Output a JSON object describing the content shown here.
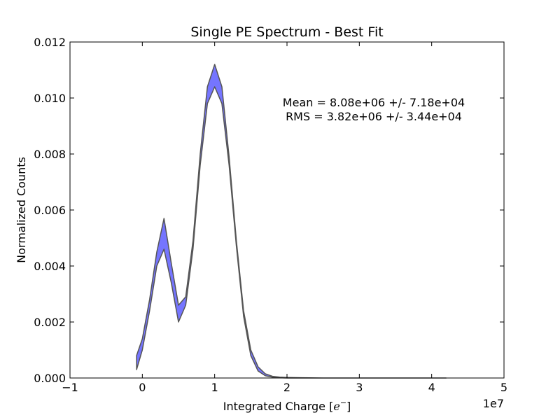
{
  "chart_data": {
    "type": "area",
    "title": "Single PE Spectrum - Best Fit",
    "xlabel": "Integrated Charge [",
    "xlabel_math": "e",
    "xlabel_sup": "−",
    "xlabel_end": "]",
    "ylabel": "Normalized Counts",
    "x_offset_label": "1e7",
    "xlim": [
      -1,
      5
    ],
    "ylim": [
      0,
      0.012
    ],
    "x_ticks": [
      -1,
      0,
      1,
      2,
      3,
      4,
      5
    ],
    "x_tick_labels": [
      "−1",
      "0",
      "1",
      "2",
      "3",
      "4",
      "5"
    ],
    "y_ticks": [
      0,
      0.002,
      0.004,
      0.006,
      0.008,
      0.01,
      0.012
    ],
    "y_tick_labels": [
      "0.000",
      "0.002",
      "0.004",
      "0.006",
      "0.008",
      "0.010",
      "0.012"
    ],
    "annotations": [
      "Mean = 8.08e+06 +/- 7.18e+04",
      "RMS = 3.82e+06 +/- 3.44e+04"
    ],
    "band": {
      "fill_color": "#7575ff",
      "edge_color": "#555555",
      "x": [
        -0.08,
        0.0,
        0.1,
        0.2,
        0.3,
        0.4,
        0.5,
        0.6,
        0.7,
        0.8,
        0.9,
        1.0,
        1.1,
        1.2,
        1.3,
        1.4,
        1.5,
        1.6,
        1.7,
        1.8,
        1.9,
        2.0,
        2.2,
        2.5,
        3.0,
        3.5,
        4.0,
        4.2
      ],
      "upper": [
        0.0008,
        0.0014,
        0.0028,
        0.0045,
        0.0057,
        0.0041,
        0.0026,
        0.0029,
        0.0049,
        0.008,
        0.0104,
        0.0112,
        0.0104,
        0.0079,
        0.0049,
        0.0024,
        0.001,
        0.0004,
        0.00015,
        6e-05,
        3e-05,
        2e-05,
        1e-05,
        0.0,
        0.0,
        0.0,
        0.0,
        0.0
      ],
      "lower": [
        0.0003,
        0.001,
        0.0024,
        0.004,
        0.0046,
        0.0034,
        0.002,
        0.0026,
        0.0046,
        0.0076,
        0.0098,
        0.0104,
        0.0098,
        0.0076,
        0.0047,
        0.0022,
        0.0008,
        0.00025,
        8e-05,
        3e-05,
        1e-05,
        0.0,
        0.0,
        0.0,
        0.0,
        0.0,
        0.0,
        0.0
      ]
    }
  }
}
